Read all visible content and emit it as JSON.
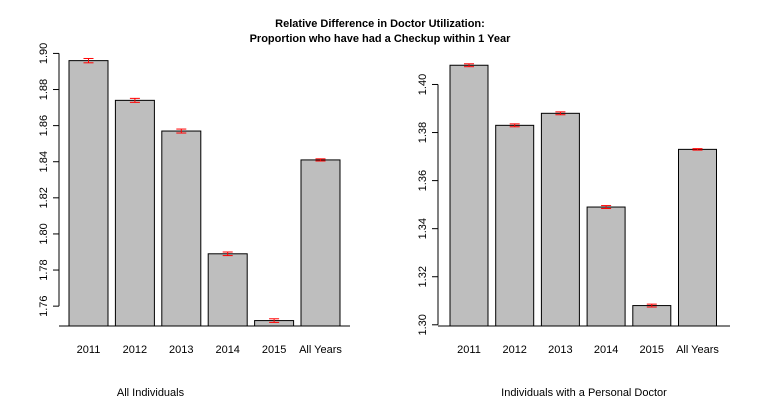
{
  "title_lines": [
    "Relative Difference in Doctor Utilization:",
    "Proportion who have had a Checkup within 1 Year"
  ],
  "colors": {
    "bar_fill": "#bebebe",
    "bar_stroke": "#000000",
    "error_bar": "#ff0000"
  },
  "chart_data": [
    {
      "type": "bar",
      "title": "Relative Difference in Doctor Utilization: Proportion who have had a Checkup within 1 Year",
      "xlabel": "All Individuals",
      "ylabel": "",
      "categories": [
        "2011",
        "2012",
        "2013",
        "2014",
        "2015",
        "All Years"
      ],
      "values": [
        1.896,
        1.874,
        1.857,
        1.789,
        1.752,
        1.841
      ],
      "error_half_width": [
        0.0012,
        0.0011,
        0.0011,
        0.001,
        0.001,
        0.0006
      ],
      "ylim": [
        1.749,
        1.903
      ],
      "yticks": [
        1.76,
        1.78,
        1.8,
        1.82,
        1.84,
        1.86,
        1.88,
        1.9
      ],
      "ytick_labels": [
        "1.76",
        "1.78",
        "1.80",
        "1.82",
        "1.84",
        "1.86",
        "1.88",
        "1.90"
      ],
      "grid": false,
      "error_bars": true
    },
    {
      "type": "bar",
      "title": "Relative Difference in Doctor Utilization: Proportion who have had a Checkup within 1 Year",
      "xlabel": "Individuals with a Personal Doctor",
      "ylabel": "",
      "categories": [
        "2011",
        "2012",
        "2013",
        "2014",
        "2015",
        "All Years"
      ],
      "values": [
        1.408,
        1.383,
        1.388,
        1.349,
        1.308,
        1.373
      ],
      "error_half_width": [
        0.0006,
        0.0006,
        0.0006,
        0.0006,
        0.0006,
        0.0003
      ],
      "ylim": [
        1.2995,
        1.4106
      ],
      "yticks": [
        1.3,
        1.32,
        1.34,
        1.36,
        1.38,
        1.4
      ],
      "ytick_labels": [
        "1.30",
        "1.32",
        "1.34",
        "1.36",
        "1.38",
        "1.40"
      ],
      "grid": false,
      "error_bars": true
    }
  ]
}
